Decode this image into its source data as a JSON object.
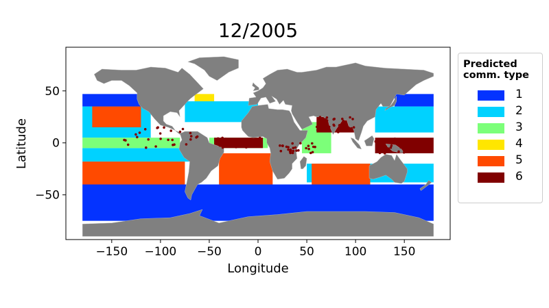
{
  "title": "12/2005",
  "chart_data": {
    "type": "scatter",
    "title": "12/2005",
    "xlabel": "Longitude",
    "ylabel": "Latitude",
    "xlim": [
      -197,
      197
    ],
    "ylim": [
      -93,
      92
    ],
    "x_ticks": [
      -150,
      -100,
      -50,
      0,
      50,
      100,
      150
    ],
    "y_ticks": [
      -50,
      0,
      50
    ],
    "x_tick_labels": [
      "−150",
      "−100",
      "−50",
      "0",
      "50",
      "100",
      "150"
    ],
    "y_tick_labels": [
      "−50",
      "0",
      "50"
    ],
    "grid": false,
    "land_color": "#808080",
    "legend": {
      "title": "Predicted\ncomm. type",
      "position": "outside-right",
      "entries": [
        {
          "label": "1",
          "color": "#0433ff"
        },
        {
          "label": "2",
          "color": "#00d2ff"
        },
        {
          "label": "3",
          "color": "#7cff79"
        },
        {
          "label": "4",
          "color": "#ffe600"
        },
        {
          "label": "5",
          "color": "#ff4a00"
        },
        {
          "label": "6",
          "color": "#800000"
        }
      ]
    },
    "regions": [
      {
        "type": "1",
        "lon": [
          -180,
          180
        ],
        "lat": [
          -75,
          -40
        ]
      },
      {
        "type": "1",
        "lon": [
          -180,
          -95
        ],
        "lat": [
          35,
          47
        ]
      },
      {
        "type": "1",
        "lon": [
          140,
          180
        ],
        "lat": [
          35,
          47
        ]
      },
      {
        "type": "2",
        "lon": [
          -180,
          -110
        ],
        "lat": [
          5,
          35
        ]
      },
      {
        "type": "2",
        "lon": [
          -180,
          -70
        ],
        "lat": [
          -18,
          -5
        ]
      },
      {
        "type": "2",
        "lon": [
          -75,
          0
        ],
        "lat": [
          20,
          40
        ]
      },
      {
        "type": "2",
        "lon": [
          50,
          180
        ],
        "lat": [
          -38,
          -20
        ]
      },
      {
        "type": "2",
        "lon": [
          120,
          180
        ],
        "lat": [
          10,
          35
        ]
      },
      {
        "type": "3",
        "lon": [
          -180,
          -80
        ],
        "lat": [
          -5,
          5
        ]
      },
      {
        "type": "3",
        "lon": [
          45,
          75
        ],
        "lat": [
          -10,
          20
        ]
      },
      {
        "type": "3",
        "lon": [
          -50,
          10
        ],
        "lat": [
          -5,
          5
        ]
      },
      {
        "type": "4",
        "lon": [
          -65,
          -45
        ],
        "lat": [
          40,
          47
        ]
      },
      {
        "type": "5",
        "lon": [
          -180,
          -75
        ],
        "lat": [
          -40,
          -18
        ]
      },
      {
        "type": "5",
        "lon": [
          -40,
          15
        ],
        "lat": [
          -40,
          -10
        ]
      },
      {
        "type": "5",
        "lon": [
          55,
          115
        ],
        "lat": [
          -40,
          -20
        ]
      },
      {
        "type": "5",
        "lon": [
          -170,
          -120
        ],
        "lat": [
          15,
          35
        ]
      },
      {
        "type": "6",
        "lon": [
          -45,
          5
        ],
        "lat": [
          -5,
          5
        ]
      },
      {
        "type": "6",
        "lon": [
          60,
          100
        ],
        "lat": [
          10,
          25
        ]
      },
      {
        "type": "6",
        "lon": [
          120,
          180
        ],
        "lat": [
          -10,
          5
        ]
      }
    ]
  }
}
